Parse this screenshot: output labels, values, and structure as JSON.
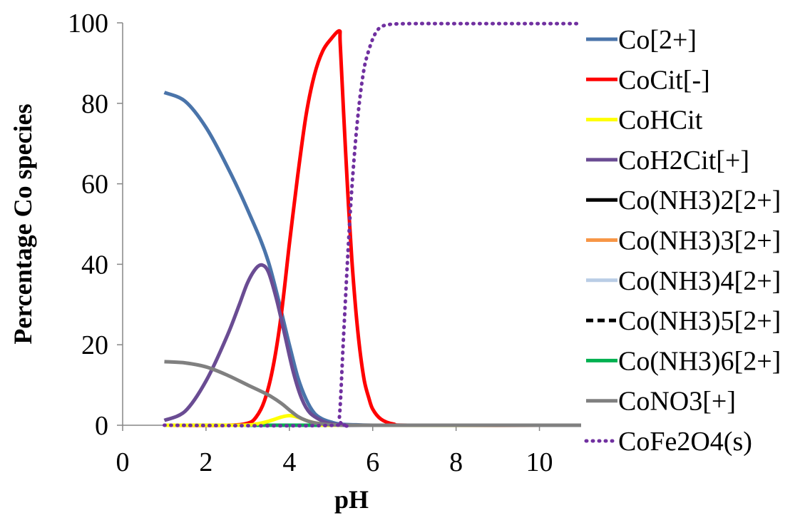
{
  "chart_data": {
    "type": "line",
    "xlabel": "pH",
    "ylabel": "Percentage Co species",
    "xlim": [
      0,
      11
    ],
    "ylim": [
      0,
      100
    ],
    "xticks": [
      0,
      2,
      4,
      6,
      8,
      10
    ],
    "yticks": [
      0,
      20,
      40,
      60,
      80,
      100
    ],
    "grid": false,
    "legend_position": "right",
    "series": [
      {
        "name": "Co[2+]",
        "color": "#4a74aa",
        "dash": "solid",
        "x": [
          1,
          1.5,
          2,
          2.5,
          3,
          3.5,
          4,
          4.2,
          4.4,
          4.6,
          4.8,
          5,
          5.2,
          5.6,
          6,
          7,
          11
        ],
        "y": [
          82.7,
          80.5,
          74,
          64.5,
          53.5,
          40.5,
          20,
          12,
          6.5,
          3,
          1.5,
          0.8,
          0.3,
          0.1,
          0,
          0,
          0
        ]
      },
      {
        "name": "CoCit[-]",
        "color": "#ff0000",
        "dash": "solid",
        "x": [
          1,
          2.5,
          3,
          3.2,
          3.4,
          3.6,
          3.8,
          4,
          4.2,
          4.4,
          4.6,
          4.8,
          5,
          5.2,
          5.22,
          5.3,
          5.4,
          5.5,
          5.6,
          5.7,
          5.8,
          5.9,
          6,
          6.2,
          6.5,
          7,
          11
        ],
        "y": [
          0,
          0,
          0.5,
          2,
          6,
          14,
          27,
          45,
          62,
          77,
          87,
          93,
          96,
          98,
          95,
          78,
          58,
          41,
          28,
          18,
          11,
          7,
          4,
          1.5,
          0.3,
          0,
          0
        ]
      },
      {
        "name": "CoHCit",
        "color": "#ffff00",
        "dash": "solid",
        "x": [
          1,
          2.8,
          3.2,
          3.5,
          3.8,
          4,
          4.2,
          4.4,
          4.6,
          4.9,
          5.2,
          11
        ],
        "y": [
          0,
          0,
          0.3,
          1,
          2,
          2.4,
          2,
          1.2,
          0.6,
          0.2,
          0,
          0
        ]
      },
      {
        "name": "CoH2Cit[+]",
        "color": "#6a4c93",
        "dash": "solid",
        "x": [
          1,
          1.5,
          2,
          2.5,
          2.8,
          3,
          3.2,
          3.35,
          3.5,
          3.7,
          3.9,
          4.1,
          4.3,
          4.5,
          4.8,
          5,
          5.3,
          6,
          11
        ],
        "y": [
          1.2,
          3.5,
          11,
          22,
          30,
          35.5,
          39,
          39.8,
          38,
          31,
          22,
          13,
          6.5,
          3,
          1,
          0.4,
          0,
          0,
          0
        ]
      },
      {
        "name": "Co(NH3)2[2+]",
        "color": "#000000",
        "dash": "solid",
        "x": [
          1,
          11
        ],
        "y": [
          0,
          0
        ]
      },
      {
        "name": "Co(NH3)3[2+]",
        "color": "#f79646",
        "dash": "solid",
        "x": [
          1,
          11
        ],
        "y": [
          0,
          0
        ]
      },
      {
        "name": "Co(NH3)4[2+]",
        "color": "#b9cde5",
        "dash": "solid",
        "x": [
          1,
          11
        ],
        "y": [
          0,
          0
        ]
      },
      {
        "name": "Co(NH3)5[2+]",
        "color": "#000000",
        "dash": "dashed",
        "x": [
          1,
          11
        ],
        "y": [
          0,
          0
        ]
      },
      {
        "name": "Co(NH3)6[2+]",
        "color": "#00b050",
        "dash": "solid",
        "x": [
          1,
          11
        ],
        "y": [
          0,
          0
        ]
      },
      {
        "name": "CoNO3[+]",
        "color": "#808080",
        "dash": "solid",
        "x": [
          1,
          1.5,
          2,
          2.5,
          3,
          3.5,
          3.8,
          4,
          4.2,
          4.4,
          4.6,
          4.8,
          5,
          5.5,
          6,
          11
        ],
        "y": [
          15.8,
          15.5,
          14.5,
          12.5,
          10,
          7.5,
          5.5,
          3.8,
          2.2,
          1.2,
          0.6,
          0.3,
          0.1,
          0,
          0,
          0
        ]
      },
      {
        "name": "CoFe2O4(s)",
        "color": "#7030a0",
        "dash": "dotted",
        "x": [
          1,
          5.1,
          5.2,
          5.3,
          5.4,
          5.5,
          5.6,
          5.7,
          5.8,
          5.9,
          6,
          6.1,
          6.2,
          6.3,
          6.5,
          7,
          8,
          11
        ],
        "y": [
          0,
          0,
          2,
          22,
          42,
          59,
          72,
          82,
          89,
          93,
          96,
          98,
          99,
          99.4,
          99.7,
          99.8,
          99.8,
          99.8
        ]
      }
    ]
  }
}
